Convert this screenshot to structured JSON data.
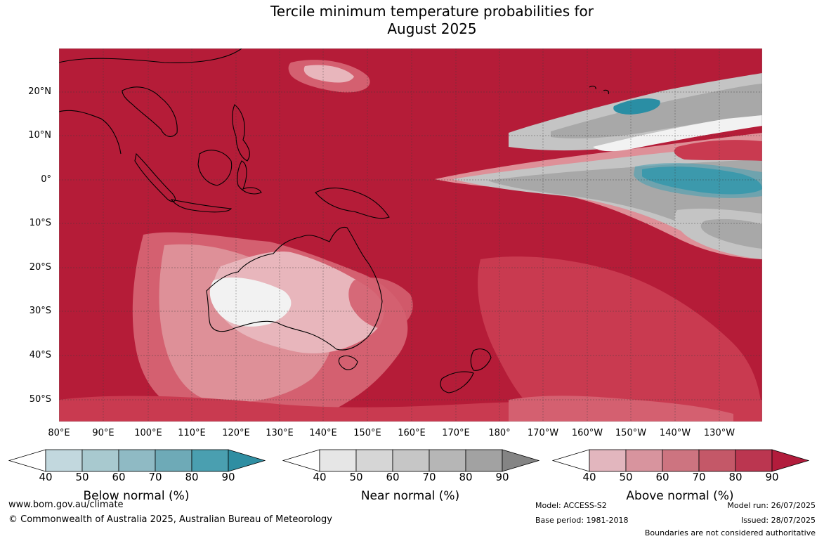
{
  "title": {
    "line1": "Tercile minimum temperature probabilities for",
    "line2": "August 2025"
  },
  "map": {
    "lat_ticks": [
      "20°N",
      "10°N",
      "0°",
      "10°S",
      "20°S",
      "30°S",
      "40°S",
      "50°S"
    ],
    "lon_ticks": [
      "80°E",
      "90°E",
      "100°E",
      "110°E",
      "120°E",
      "130°E",
      "140°E",
      "150°E",
      "160°E",
      "170°E",
      "180°",
      "170°W",
      "160°W",
      "150°W",
      "140°W",
      "130°W"
    ],
    "colors": {
      "base": "#b51c38",
      "above_80": "#c93a50",
      "above_70": "#d46070",
      "above_60": "#de9098",
      "above_50": "#e8b6bc",
      "near_60": "#c4c4c4",
      "near_70": "#a8a8a8",
      "near_90": "#8c8c8c",
      "below_80": "#4aa0b2",
      "below_90": "#2a8ea4",
      "light": "#f2f2f2"
    }
  },
  "colorbars": [
    {
      "label": "Below normal (%)",
      "ticks": [
        "40",
        "50",
        "60",
        "70",
        "80",
        "90"
      ],
      "colors": [
        "#c2d8de",
        "#a8c9cf",
        "#8fbac4",
        "#6eaab7",
        "#4a9fb0",
        "#2f8ea2"
      ]
    },
    {
      "label": "Near normal (%)",
      "ticks": [
        "40",
        "50",
        "60",
        "70",
        "80",
        "90"
      ],
      "colors": [
        "#e6e6e6",
        "#d6d6d6",
        "#c6c6c6",
        "#b6b6b6",
        "#a2a2a2",
        "#848484"
      ]
    },
    {
      "label": "Above normal (%)",
      "ticks": [
        "40",
        "50",
        "60",
        "70",
        "80",
        "90"
      ],
      "colors": [
        "#e2b6be",
        "#d8949e",
        "#cd7480",
        "#c45868",
        "#bb3650",
        "#b21c3c"
      ]
    }
  ],
  "footer": {
    "website": "www.bom.gov.au/climate",
    "copyright": "© Commonwealth of Australia 2025, Australian Bureau of Meteorology",
    "model": "Model: ACCESS-S2",
    "base_period": "Base period: 1981-2018",
    "model_run": "Model run: 26/07/2025",
    "issued": "Issued: 28/07/2025",
    "disclaimer": "Boundaries are not considered authoritative"
  }
}
